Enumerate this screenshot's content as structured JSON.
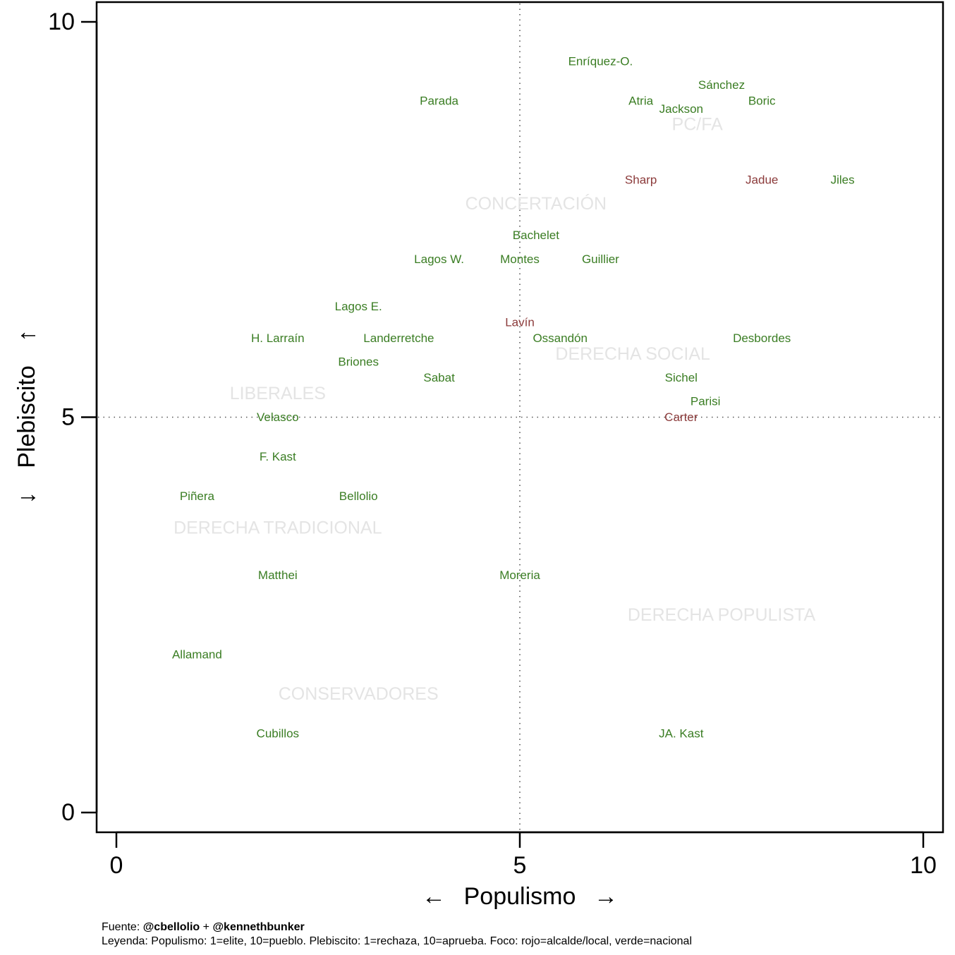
{
  "chart_data": {
    "type": "scatter",
    "xlabel": "Populismo",
    "ylabel": "Plebiscito",
    "xlim": [
      0,
      10
    ],
    "ylim": [
      0,
      10
    ],
    "x_ticks": [
      0,
      5,
      10
    ],
    "y_ticks": [
      0,
      5,
      10
    ],
    "reference_lines": {
      "x": 5,
      "y": 5,
      "style": "dotted"
    },
    "grid": false,
    "colors": {
      "nacional": "#3a7d23",
      "local": "#8b3a3a",
      "group": "#e4e4e4"
    },
    "points": [
      {
        "label": "Enríquez-O.",
        "x": 6.0,
        "y": 9.5,
        "foco": "nacional"
      },
      {
        "label": "Sánchez",
        "x": 7.5,
        "y": 9.2,
        "foco": "nacional"
      },
      {
        "label": "Parada",
        "x": 4.0,
        "y": 9.0,
        "foco": "nacional"
      },
      {
        "label": "Atria",
        "x": 6.5,
        "y": 9.0,
        "foco": "nacional"
      },
      {
        "label": "Boric",
        "x": 8.0,
        "y": 9.0,
        "foco": "nacional"
      },
      {
        "label": "Jackson",
        "x": 7.0,
        "y": 8.9,
        "foco": "nacional"
      },
      {
        "label": "Sharp",
        "x": 6.5,
        "y": 8.0,
        "foco": "local"
      },
      {
        "label": "Jadue",
        "x": 8.0,
        "y": 8.0,
        "foco": "local"
      },
      {
        "label": "Jiles",
        "x": 9.0,
        "y": 8.0,
        "foco": "nacional"
      },
      {
        "label": "Bachelet",
        "x": 5.2,
        "y": 7.3,
        "foco": "nacional"
      },
      {
        "label": "Lagos W.",
        "x": 4.0,
        "y": 7.0,
        "foco": "nacional"
      },
      {
        "label": "Montes",
        "x": 5.0,
        "y": 7.0,
        "foco": "nacional"
      },
      {
        "label": "Guillier",
        "x": 6.0,
        "y": 7.0,
        "foco": "nacional"
      },
      {
        "label": "Lagos E.",
        "x": 3.0,
        "y": 6.4,
        "foco": "nacional"
      },
      {
        "label": "Lavín",
        "x": 5.0,
        "y": 6.2,
        "foco": "local"
      },
      {
        "label": "H. Larraín",
        "x": 2.0,
        "y": 6.0,
        "foco": "nacional"
      },
      {
        "label": "Landerretche",
        "x": 3.5,
        "y": 6.0,
        "foco": "nacional"
      },
      {
        "label": "Ossandón",
        "x": 5.5,
        "y": 6.0,
        "foco": "nacional"
      },
      {
        "label": "Desbordes",
        "x": 8.0,
        "y": 6.0,
        "foco": "nacional"
      },
      {
        "label": "Briones",
        "x": 3.0,
        "y": 5.7,
        "foco": "nacional"
      },
      {
        "label": "Sabat",
        "x": 4.0,
        "y": 5.5,
        "foco": "nacional"
      },
      {
        "label": "Sichel",
        "x": 7.0,
        "y": 5.5,
        "foco": "nacional"
      },
      {
        "label": "Parisi",
        "x": 7.3,
        "y": 5.2,
        "foco": "nacional"
      },
      {
        "label": "Velasco",
        "x": 2.0,
        "y": 5.0,
        "foco": "nacional"
      },
      {
        "label": "Carter",
        "x": 7.0,
        "y": 5.0,
        "foco": "local"
      },
      {
        "label": "F. Kast",
        "x": 2.0,
        "y": 4.5,
        "foco": "nacional"
      },
      {
        "label": "Piñera",
        "x": 1.0,
        "y": 4.0,
        "foco": "nacional"
      },
      {
        "label": "Bellolio",
        "x": 3.0,
        "y": 4.0,
        "foco": "nacional"
      },
      {
        "label": "Matthei",
        "x": 2.0,
        "y": 3.0,
        "foco": "nacional"
      },
      {
        "label": "Moreria",
        "x": 5.0,
        "y": 3.0,
        "foco": "nacional"
      },
      {
        "label": "Allamand",
        "x": 1.0,
        "y": 2.0,
        "foco": "nacional"
      },
      {
        "label": "Cubillos",
        "x": 2.0,
        "y": 1.0,
        "foco": "nacional"
      },
      {
        "label": "JA. Kast",
        "x": 7.0,
        "y": 1.0,
        "foco": "nacional"
      }
    ],
    "groups": [
      {
        "label": "PC/FA",
        "x": 7.2,
        "y": 8.7
      },
      {
        "label": "CONCERTACIÓN",
        "x": 5.2,
        "y": 7.7
      },
      {
        "label": "DERECHA SOCIAL",
        "x": 6.4,
        "y": 5.8
      },
      {
        "label": "LIBERALES",
        "x": 2.0,
        "y": 5.3
      },
      {
        "label": "DERECHA TRADICIONAL",
        "x": 2.0,
        "y": 3.6
      },
      {
        "label": "DERECHA POPULISTA",
        "x": 7.5,
        "y": 2.5
      },
      {
        "label": "CONSERVADORES",
        "x": 3.0,
        "y": 1.5
      }
    ]
  },
  "axis_arrows": {
    "x_left": "←",
    "x_right": "→",
    "y_down": "↓",
    "y_up": "↑"
  },
  "footer": {
    "source_prefix": "Fuente: ",
    "source_author1": "@cbellolio",
    "source_sep": " + ",
    "source_author2": "@kennethbunker",
    "legend": "Leyenda: Populismo: 1=elite, 10=pueblo. Plebiscito: 1=rechaza, 10=aprueba. Foco: rojo=alcalde/local, verde=nacional"
  }
}
